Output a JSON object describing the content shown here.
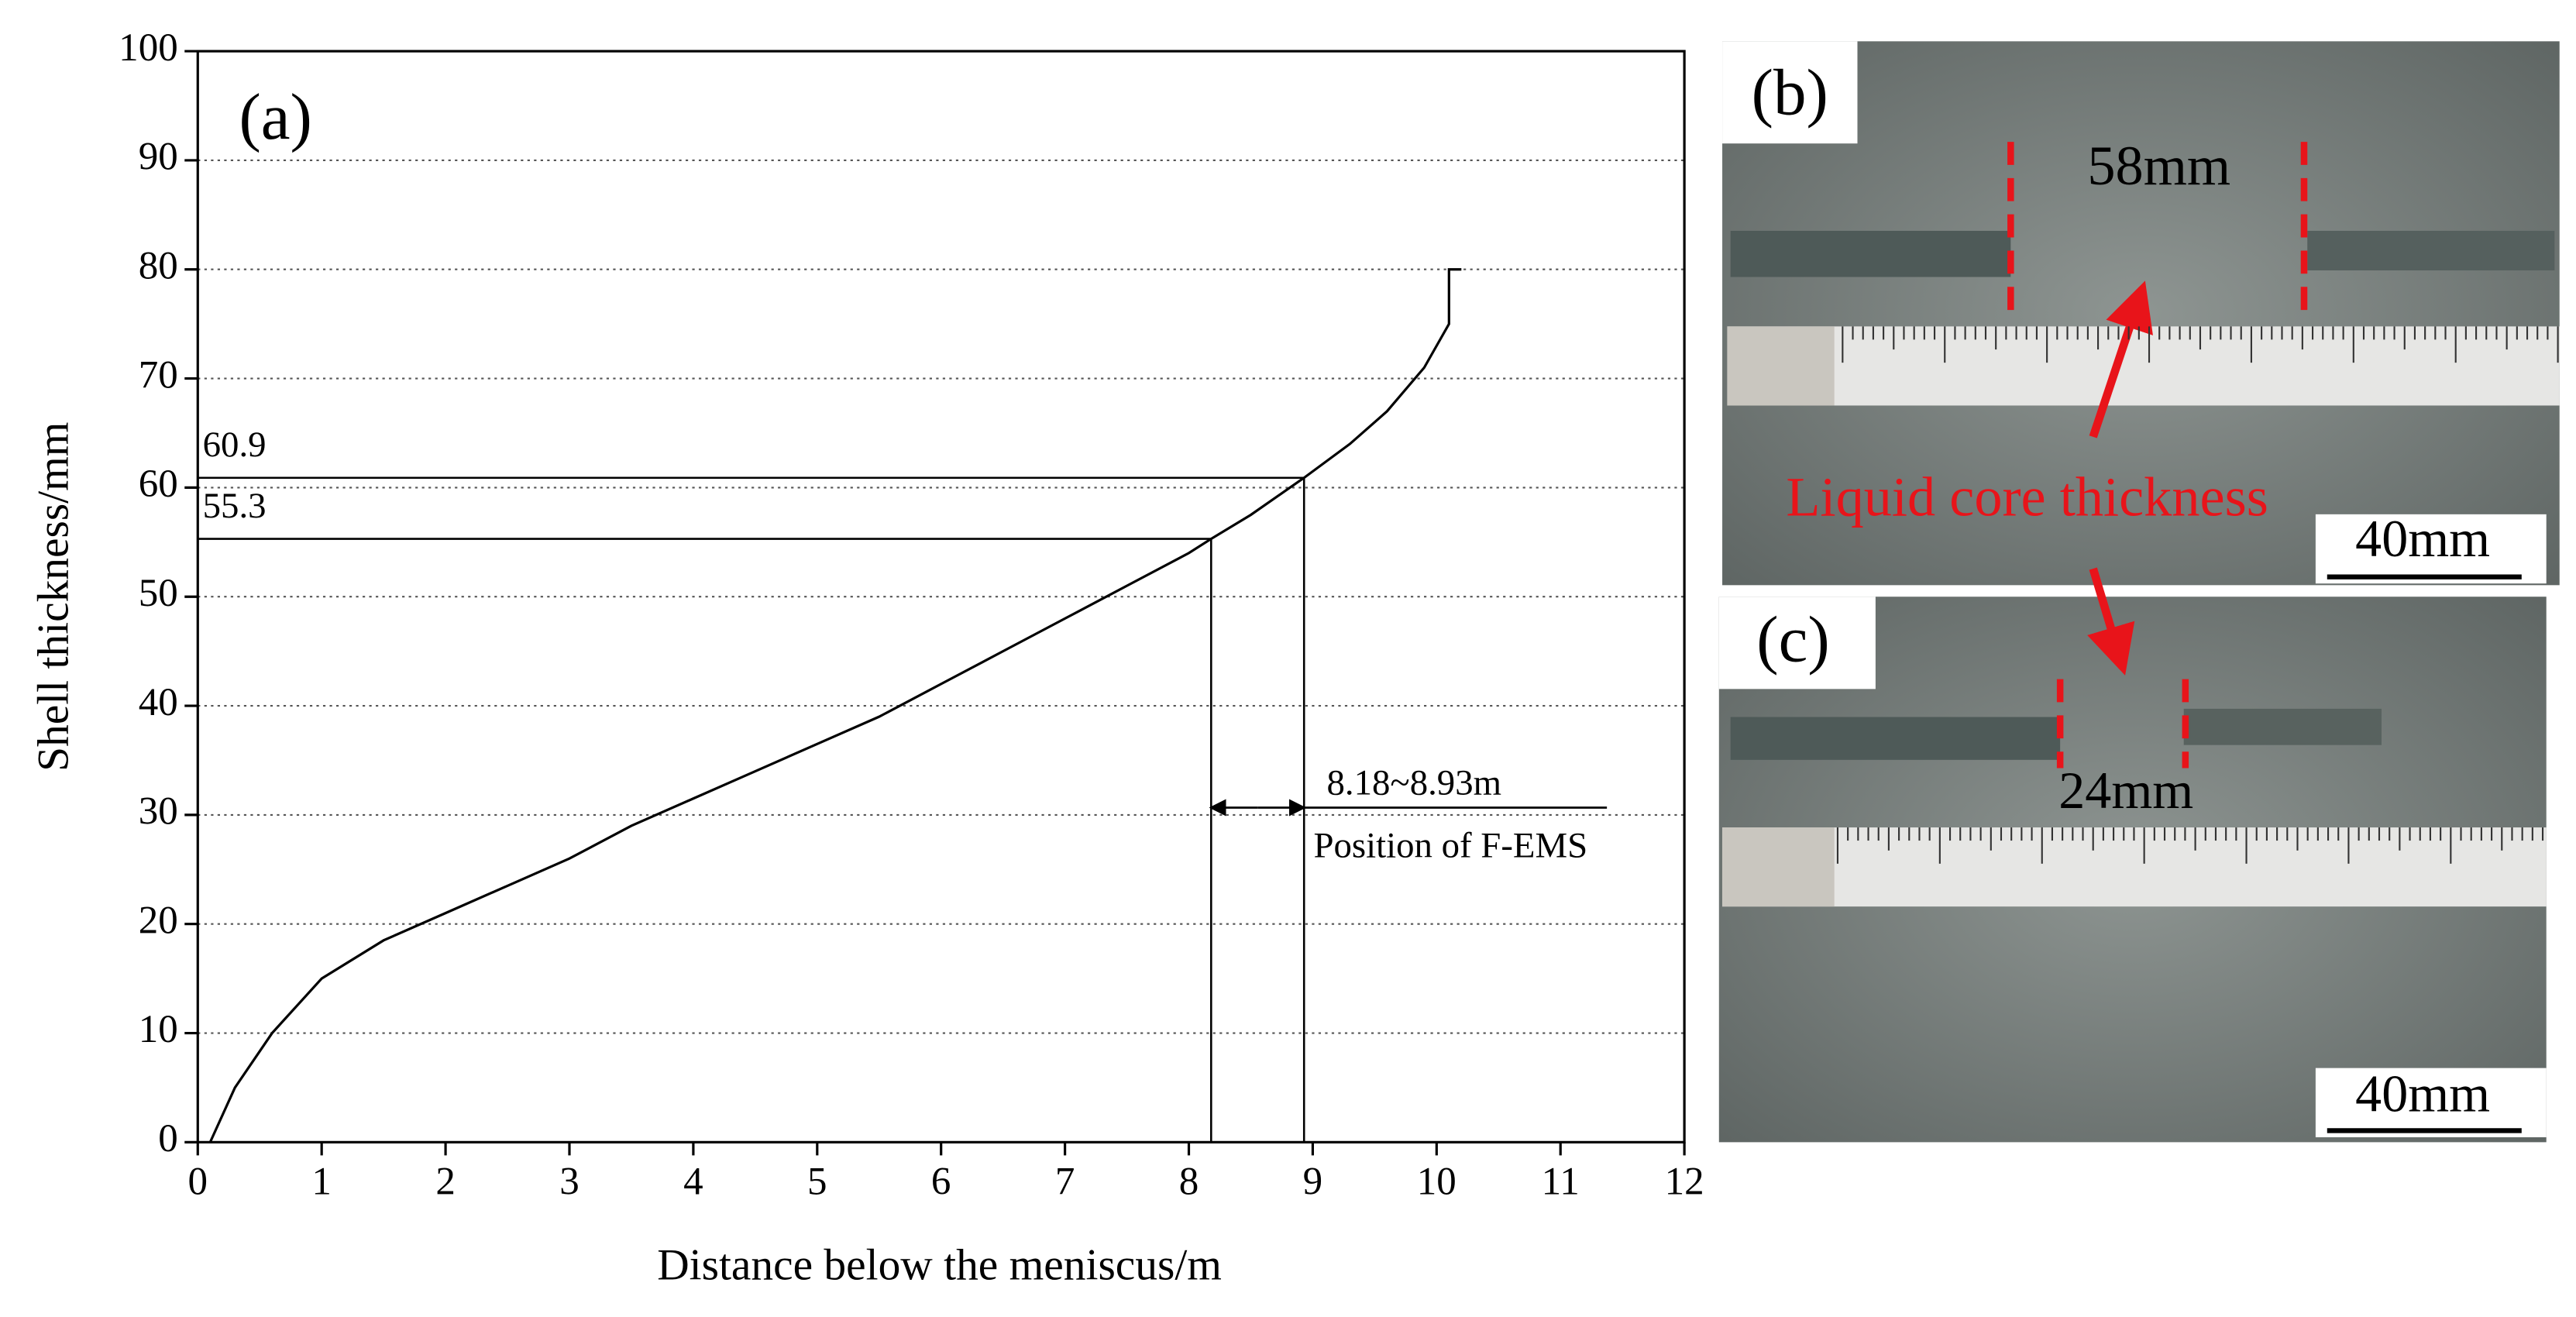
{
  "chart_data": {
    "type": "line",
    "panel_label": "(a)",
    "x_label": "Distance below the meniscus/m",
    "y_label": "Shell thickness/mm",
    "x": [
      0.1,
      0.3,
      0.6,
      1.0,
      1.5,
      2.0,
      2.5,
      3.0,
      3.5,
      4.0,
      4.5,
      5.0,
      5.5,
      6.0,
      6.5,
      7.0,
      7.5,
      8.0,
      8.18,
      8.5,
      8.93,
      9.3,
      9.6,
      9.9,
      10.05,
      10.1,
      10.1,
      10.2
    ],
    "values": [
      0,
      5,
      10,
      15,
      18.5,
      21,
      23.5,
      26,
      29,
      31.5,
      34,
      36.5,
      39,
      42,
      45,
      48,
      51,
      54,
      55.3,
      57.5,
      60.9,
      64,
      67,
      71,
      74,
      75,
      80,
      80
    ],
    "color": "#000000",
    "xlim": [
      0,
      12
    ],
    "xticks": [
      0,
      1,
      2,
      3,
      4,
      5,
      6,
      7,
      8,
      9,
      10,
      11,
      12
    ],
    "ylim": [
      0,
      100
    ],
    "yticks": [
      0,
      10,
      20,
      30,
      40,
      50,
      60,
      70,
      80,
      90,
      100
    ],
    "grid": true,
    "markers": [
      {
        "x": 8.93,
        "y": 60.9
      },
      {
        "x": 8.18,
        "y": 55.3
      }
    ],
    "range_label": "8.18~8.93m",
    "range_note": "Position of F-EMS"
  },
  "photos": [
    {
      "label": "(b)",
      "measure": "58mm",
      "scale": "40mm"
    },
    {
      "label": "(c)",
      "measure": "24mm",
      "scale": "40mm"
    }
  ],
  "photo_annotation": "Liquid core thickness"
}
